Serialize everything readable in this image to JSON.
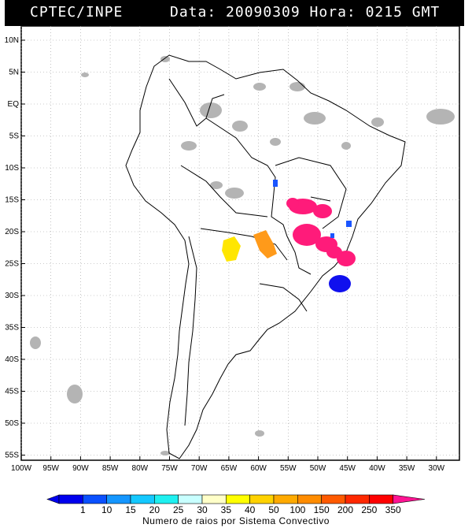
{
  "header": {
    "source": "CPTEC/INPE",
    "datetime": "Data: 20090309 Hora: 0215 GMT"
  },
  "axes": {
    "lat_labels": [
      "10N",
      "5N",
      "EQ",
      "5S",
      "10S",
      "15S",
      "20S",
      "25S",
      "30S",
      "35S",
      "40S",
      "45S",
      "50S",
      "55S"
    ],
    "lon_labels": [
      "100W",
      "95W",
      "90W",
      "85W",
      "80W",
      "75W",
      "70W",
      "65W",
      "60W",
      "55W",
      "50W",
      "45W",
      "40W",
      "35W",
      "30W"
    ]
  },
  "colorbar": {
    "title": "Numero de raios por Sistema Convectivo",
    "ticks": [
      "1",
      "10",
      "15",
      "20",
      "25",
      "30",
      "35",
      "40",
      "50",
      "100",
      "150",
      "200",
      "250",
      "350"
    ],
    "colors": [
      "#0000ee",
      "#0a50ff",
      "#1496ff",
      "#14c8ff",
      "#1ef0f0",
      "#c8ffff",
      "#ffffc8",
      "#ffff00",
      "#ffd200",
      "#ffaa00",
      "#ff8c00",
      "#ff5a00",
      "#ff2800",
      "#ff0000",
      "#ff1493"
    ]
  },
  "systems": [
    {
      "name": "Central Brazil cluster",
      "color": "#ff1b7a",
      "lightning": "350"
    },
    {
      "name": "Southeast Brazil cluster",
      "color": "#ff1b7a",
      "lightning": "350"
    },
    {
      "name": "Paraguay system",
      "color": "#ff9a1a",
      "lightning": "100"
    },
    {
      "name": "North Argentina system",
      "color": "#ffe600",
      "lightning": "40"
    },
    {
      "name": "South Atlantic system",
      "color": "#1010ee",
      "lightning": "1"
    },
    {
      "name": "Small Mato Grosso cell",
      "color": "#1a55ff",
      "lightning": "10"
    }
  ],
  "background_clouds_color": "#b4b4b4"
}
